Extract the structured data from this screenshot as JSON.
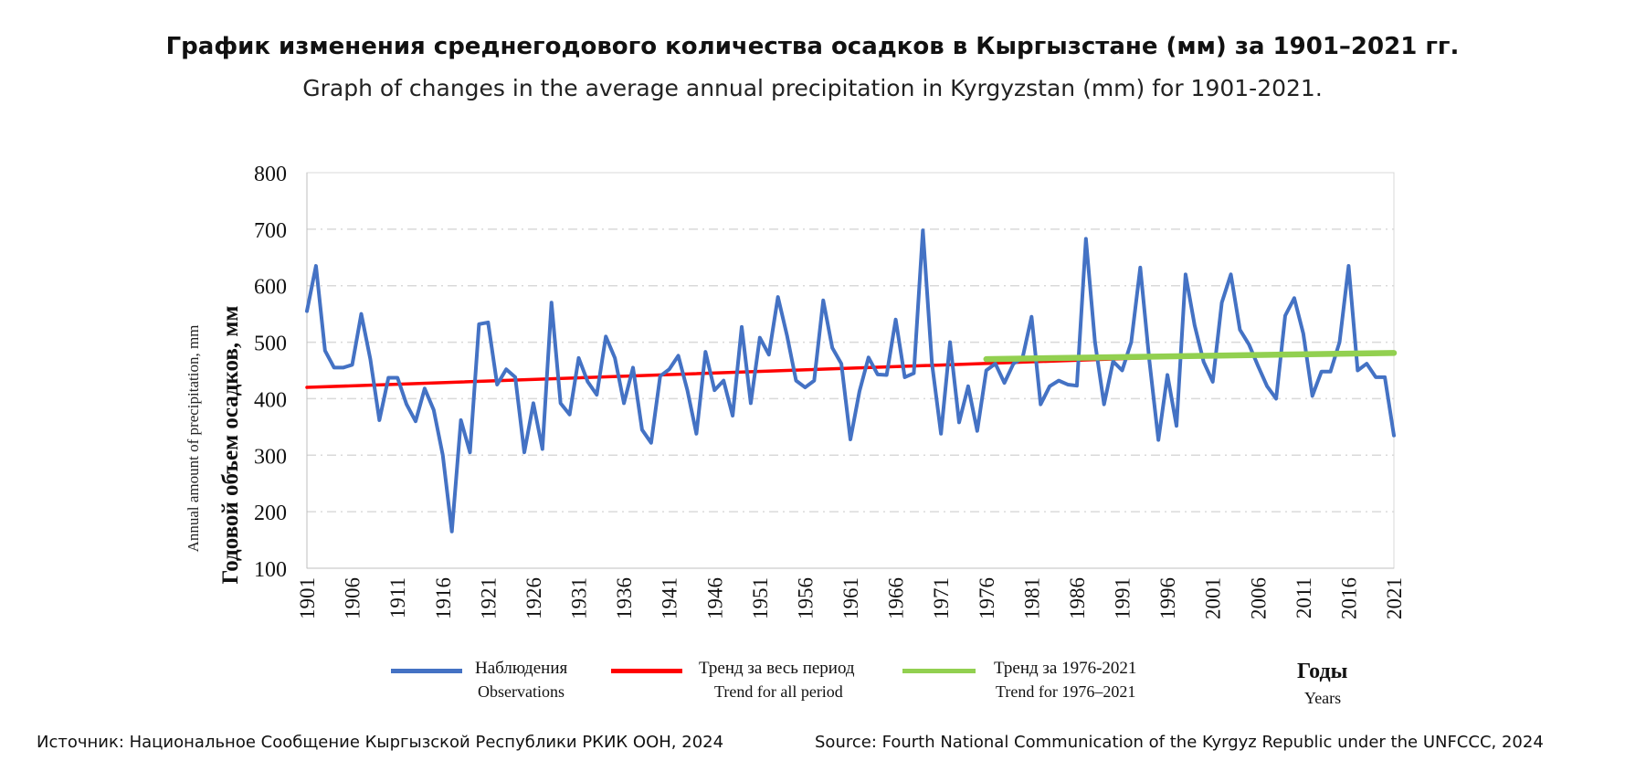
{
  "title": "График изменения среднегодового количества осадков в Кыргызстане (мм) за 1901–2021 гг.",
  "subtitle": "Graph of changes in the average annual precipitation in Kyrgyzstan (mm) for 1901-2021.",
  "ylabel_ru": "Годовой объем осадков, мм",
  "ylabel_en": "Annual amount of precipitation, mm",
  "xlabel_ru": "Годы",
  "xlabel_en": "Years",
  "source_ru": "Источник: Национальное Сообщение Кыргызской Республики РКИК ООН, 2024",
  "source_en": "Source: Fourth National Communication of the Kyrgyz Republic under the UNFCCC, 2024",
  "legend": [
    {
      "label_ru": "Наблюдения",
      "label_en": "Observations",
      "color": "#4472C4"
    },
    {
      "label_ru": "Тренд за весь период",
      "label_en": "Trend for all period",
      "color": "#FF0000"
    },
    {
      "label_ru": "Тренд за 1976-2021",
      "label_en": "Trend for 1976–2021",
      "color": "#92D050"
    }
  ],
  "chart_data": {
    "type": "line",
    "x_start": 1901,
    "x_end": 2021,
    "x_tick_labels": [
      "1901",
      "1906",
      "1911",
      "1916",
      "1921",
      "1926",
      "1931",
      "1936",
      "1941",
      "1946",
      "1951",
      "1956",
      "1961",
      "1966",
      "1971",
      "1976",
      "1981",
      "1986",
      "1991",
      "1996",
      "2001",
      "2006",
      "2011",
      "2016",
      "2021"
    ],
    "ylim": [
      100,
      800
    ],
    "y_ticks": [
      100,
      200,
      300,
      400,
      500,
      600,
      700,
      800
    ],
    "grid": true,
    "series": [
      {
        "name": "Наблюдения",
        "color": "#4472C4",
        "x": [
          1901,
          1902,
          1903,
          1904,
          1905,
          1906,
          1907,
          1908,
          1909,
          1910,
          1911,
          1912,
          1913,
          1914,
          1915,
          1916,
          1917,
          1918,
          1919,
          1920,
          1921,
          1922,
          1923,
          1924,
          1925,
          1926,
          1927,
          1928,
          1929,
          1930,
          1931,
          1932,
          1933,
          1934,
          1935,
          1936,
          1937,
          1938,
          1939,
          1940,
          1941,
          1942,
          1943,
          1944,
          1945,
          1946,
          1947,
          1948,
          1949,
          1950,
          1951,
          1952,
          1953,
          1954,
          1955,
          1956,
          1957,
          1958,
          1959,
          1960,
          1961,
          1962,
          1963,
          1964,
          1965,
          1966,
          1967,
          1968,
          1969,
          1970,
          1971,
          1972,
          1973,
          1974,
          1975,
          1976,
          1977,
          1978,
          1979,
          1980,
          1981,
          1982,
          1983,
          1984,
          1985,
          1986,
          1987,
          1988,
          1989,
          1990,
          1991,
          1992,
          1993,
          1994,
          1995,
          1996,
          1997,
          1998,
          1999,
          2000,
          2001,
          2002,
          2003,
          2004,
          2005,
          2006,
          2007,
          2008,
          2009,
          2010,
          2011,
          2012,
          2013,
          2014,
          2015,
          2016,
          2017,
          2018,
          2019,
          2020,
          2021
        ],
        "values": [
          555,
          635,
          485,
          455,
          455,
          460,
          550,
          470,
          362,
          437,
          437,
          390,
          360,
          418,
          380,
          300,
          165,
          362,
          305,
          532,
          535,
          425,
          452,
          438,
          305,
          392,
          311,
          570,
          392,
          372,
          472,
          430,
          407,
          510,
          472,
          392,
          455,
          345,
          322,
          440,
          452,
          476,
          415,
          338,
          483,
          415,
          432,
          370,
          527,
          392,
          508,
          478,
          580,
          512,
          432,
          420,
          432,
          574,
          490,
          462,
          328,
          413,
          473,
          443,
          442,
          540,
          438,
          445,
          698,
          463,
          338,
          500,
          358,
          422,
          343,
          450,
          462,
          428,
          462,
          472,
          545,
          390,
          422,
          432,
          425,
          423,
          683,
          500,
          390,
          466,
          450,
          500,
          632,
          468,
          327,
          442,
          352,
          620,
          530,
          465,
          430,
          570,
          620,
          522,
          496,
          458,
          422,
          400,
          547,
          578,
          515,
          405,
          448,
          448,
          500,
          635,
          450,
          462,
          438,
          438,
          335
        ]
      },
      {
        "name": "Тренд за весь период",
        "color": "#FF0000",
        "x": [
          1901,
          2000
        ],
        "values": [
          420,
          476
        ]
      },
      {
        "name": "Тренд за 1976-2021",
        "color": "#92D050",
        "x": [
          1976,
          2021
        ],
        "values": [
          470,
          481
        ]
      }
    ]
  }
}
